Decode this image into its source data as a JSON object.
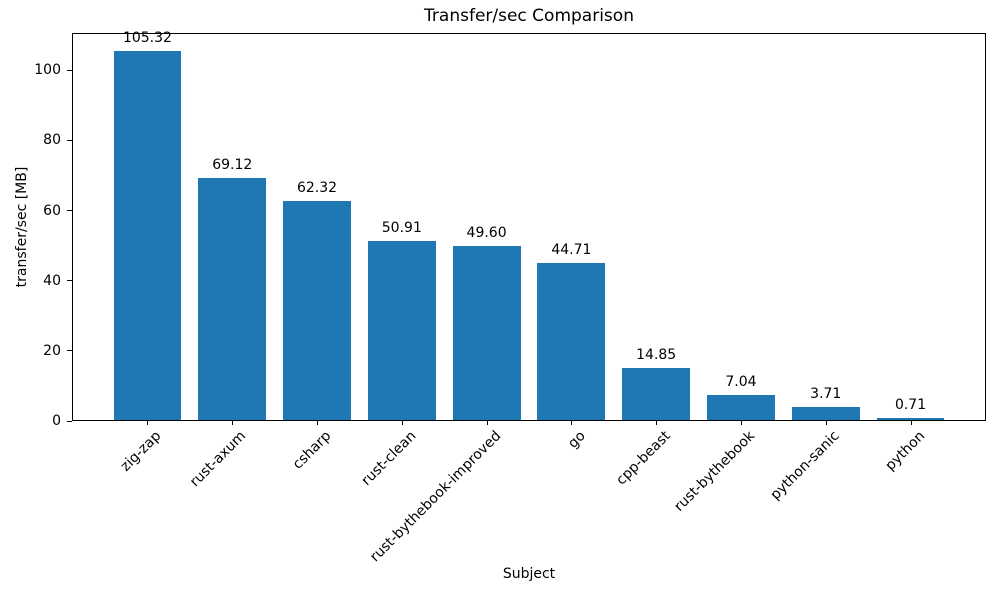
{
  "chart_data": {
    "type": "bar",
    "title": "Transfer/sec Comparison",
    "xlabel": "Subject",
    "ylabel": "transfer/sec [MB]",
    "categories": [
      "zig-zap",
      "rust-axum",
      "csharp",
      "rust-clean",
      "rust-bythebook-improved",
      "go",
      "cpp-beast",
      "rust-bythebook",
      "python-sanic",
      "python"
    ],
    "values": [
      105.32,
      69.12,
      62.32,
      50.91,
      49.6,
      44.71,
      14.85,
      7.04,
      3.71,
      0.71
    ],
    "value_labels": [
      "105.32",
      "69.12",
      "62.32",
      "50.91",
      "49.60",
      "44.71",
      "14.85",
      "7.04",
      "3.71",
      "0.71"
    ],
    "yticks": [
      0,
      20,
      40,
      60,
      80,
      100
    ],
    "ylim": [
      0,
      110.6
    ],
    "bar_color": "#1f77b4",
    "axis_color": "#000000",
    "grid": false,
    "legend_position": "none"
  }
}
